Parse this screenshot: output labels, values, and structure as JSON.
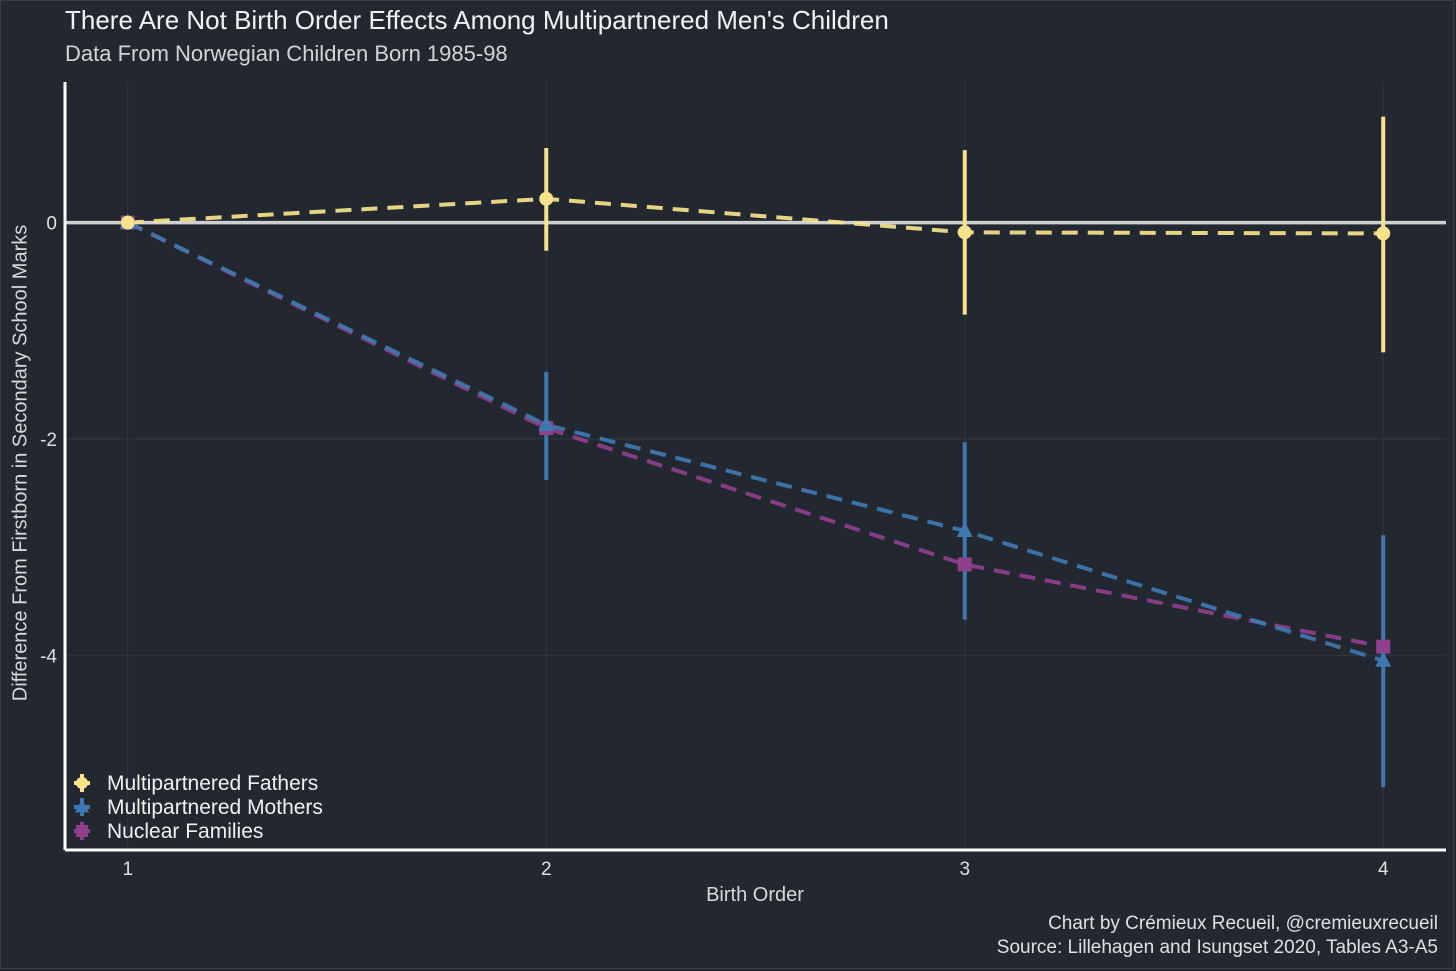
{
  "title": "There Are Not Birth Order Effects Among Multipartnered Men's Children",
  "subtitle": "Data From Norwegian Children Born 1985-98",
  "caption_line1": "Chart by Crémieux Recueil, @cremieuxrecueil",
  "caption_line2": "Source: Lillehagen and Isungset 2020, Tables A3-A5",
  "colors": {
    "background": "#232830",
    "fathers": "#f6e38c",
    "mothers": "#3f78b0",
    "nuclear": "#8f3f8c",
    "axis": "#ffffff",
    "zero_line": "#d0d0d0",
    "grid": "#303743"
  },
  "chart_data": {
    "type": "line",
    "title": "There Are Not Birth Order Effects Among Multipartnered Men's Children",
    "subtitle": "Data From Norwegian Children Born 1985-98",
    "xlabel": "Birth Order",
    "ylabel": "Difference From Firstborn in Secondary School Marks",
    "x": [
      1,
      2,
      3,
      4
    ],
    "xlim": [
      0.85,
      4.15
    ],
    "ylim": [
      -5.8,
      1.3
    ],
    "x_ticks": [
      1,
      2,
      3,
      4
    ],
    "y_ticks": [
      0,
      -2,
      -4
    ],
    "grid": true,
    "legend_position": "bottom-left",
    "reference_line": 0,
    "series": [
      {
        "name": "Multipartnered Fathers",
        "marker": "circle",
        "color": "#f6e38c",
        "values": [
          0,
          0.22,
          -0.09,
          -0.1
        ],
        "ci_low": [
          null,
          -0.26,
          -0.85,
          -1.2
        ],
        "ci_high": [
          null,
          0.69,
          0.67,
          0.98
        ]
      },
      {
        "name": "Multipartnered Mothers",
        "marker": "triangle",
        "color": "#3f78b0",
        "values": [
          0,
          -1.87,
          -2.85,
          -4.05
        ],
        "ci_low": [
          null,
          -2.38,
          -3.67,
          -5.22
        ],
        "ci_high": [
          null,
          -1.38,
          -2.03,
          -2.89
        ]
      },
      {
        "name": "Nuclear Families",
        "marker": "square",
        "color": "#8f3f8c",
        "values": [
          0,
          -1.9,
          -3.16,
          -3.92
        ],
        "ci_low": [
          null,
          null,
          null,
          null
        ],
        "ci_high": [
          null,
          null,
          null,
          null
        ]
      }
    ]
  }
}
